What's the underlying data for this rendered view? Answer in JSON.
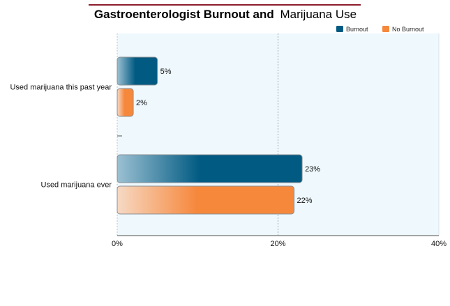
{
  "chart_data": {
    "type": "bar",
    "orientation": "horizontal",
    "title_bold": "Gastroenterologist Burnout and",
    "title_light": "Marijuana Use",
    "categories": [
      "Used marijuana this past year",
      "Used marijuana ever"
    ],
    "series": [
      {
        "name": "Burnout",
        "values": [
          5,
          23
        ],
        "labels": [
          "5%",
          "23%"
        ]
      },
      {
        "name": "No Burnout",
        "values": [
          2,
          22
        ],
        "labels": [
          "2%",
          "22%"
        ]
      }
    ],
    "xlim": [
      0,
      40
    ],
    "x_ticks": [
      0,
      20,
      40
    ],
    "x_tick_labels": [
      "0%",
      "20%",
      "40%"
    ],
    "xlabel": "",
    "ylabel": "",
    "grid": true,
    "legend_position": "top-right"
  },
  "colors": {
    "title_rule": "#8b1c2c",
    "plot_bg": "#eef8fd",
    "burnout": "#005a82",
    "burnout_light": "#9cc0d2",
    "no_burnout": "#f6883c",
    "no_burnout_light": "#f6d9c4"
  }
}
